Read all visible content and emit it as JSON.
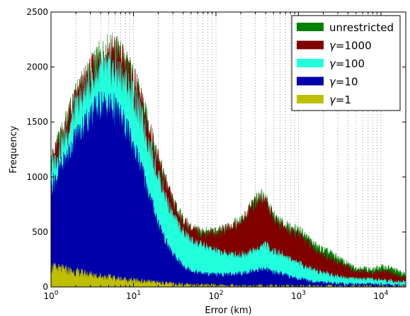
{
  "chart_data": {
    "type": "area",
    "xscale": "log",
    "xlabel": "Error (km)",
    "ylabel": "Frequency",
    "xlim": [
      1,
      20000
    ],
    "ylim": [
      0,
      2500
    ],
    "grid": "vertical dotted",
    "legend_position": "top-right",
    "x_ticks": [
      {
        "value": 1,
        "base": "10",
        "exp": "0"
      },
      {
        "value": 10,
        "base": "10",
        "exp": "1"
      },
      {
        "value": 100,
        "base": "10",
        "exp": "2"
      },
      {
        "value": 1000,
        "base": "10",
        "exp": "3"
      },
      {
        "value": 10000,
        "base": "10",
        "exp": "4"
      }
    ],
    "y_ticks": [
      "0",
      "500",
      "1000",
      "1500",
      "2000",
      "2500"
    ],
    "x": [
      1,
      1.5,
      2,
      3,
      4,
      5,
      6,
      7,
      8,
      10,
      13,
      16,
      20,
      25,
      30,
      40,
      50,
      60,
      80,
      100,
      130,
      160,
      200,
      250,
      300,
      350,
      400,
      500,
      600,
      800,
      1000,
      1300,
      1600,
      2000,
      2500,
      3000,
      4000,
      5000,
      6000,
      8000,
      10000,
      13000,
      16000,
      20000
    ],
    "series": [
      {
        "name": "γ=1",
        "color": "#bfbf00",
        "values": [
          170,
          150,
          130,
          110,
          95,
          85,
          75,
          70,
          65,
          55,
          48,
          42,
          36,
          30,
          26,
          22,
          18,
          16,
          14,
          12,
          10,
          9,
          8,
          7,
          7,
          8,
          8,
          7,
          6,
          6,
          5,
          5,
          4,
          4,
          4,
          3,
          3,
          3,
          3,
          2,
          2,
          2,
          2,
          2
        ]
      },
      {
        "name": "γ=10",
        "color": "#0000aa",
        "values": [
          900,
          1150,
          1350,
          1550,
          1650,
          1640,
          1600,
          1520,
          1440,
          1270,
          1030,
          800,
          580,
          400,
          290,
          190,
          150,
          130,
          110,
          110,
          110,
          115,
          120,
          135,
          150,
          155,
          160,
          130,
          120,
          90,
          75,
          55,
          45,
          40,
          35,
          30,
          25,
          25,
          25,
          22,
          20,
          18,
          16,
          14
        ]
      },
      {
        "name": "γ=100",
        "color": "#22ffdd",
        "values": [
          1060,
          1350,
          1600,
          1830,
          1950,
          1960,
          1950,
          1900,
          1850,
          1720,
          1480,
          1240,
          1000,
          800,
          630,
          490,
          420,
          390,
          350,
          320,
          300,
          290,
          290,
          310,
          330,
          360,
          380,
          320,
          300,
          250,
          220,
          170,
          150,
          130,
          110,
          95,
          80,
          70,
          70,
          65,
          60,
          55,
          50,
          45
        ]
      },
      {
        "name": "γ=1000",
        "color": "#800000",
        "values": [
          1120,
          1450,
          1690,
          1920,
          2050,
          2110,
          2110,
          2050,
          1990,
          1850,
          1620,
          1380,
          1130,
          920,
          750,
          590,
          520,
          490,
          480,
          480,
          510,
          550,
          570,
          680,
          760,
          800,
          780,
          620,
          560,
          490,
          470,
          400,
          330,
          290,
          250,
          220,
          170,
          140,
          140,
          120,
          140,
          130,
          100,
          80
        ]
      },
      {
        "name": "unrestricted",
        "color": "#008000",
        "values": [
          1130,
          1460,
          1700,
          1930,
          2060,
          2120,
          2120,
          2060,
          2000,
          1860,
          1630,
          1390,
          1140,
          930,
          760,
          600,
          530,
          500,
          490,
          490,
          520,
          560,
          580,
          690,
          770,
          810,
          790,
          630,
          580,
          520,
          510,
          440,
          370,
          330,
          300,
          260,
          200,
          170,
          170,
          150,
          180,
          170,
          140,
          110
        ]
      }
    ]
  }
}
